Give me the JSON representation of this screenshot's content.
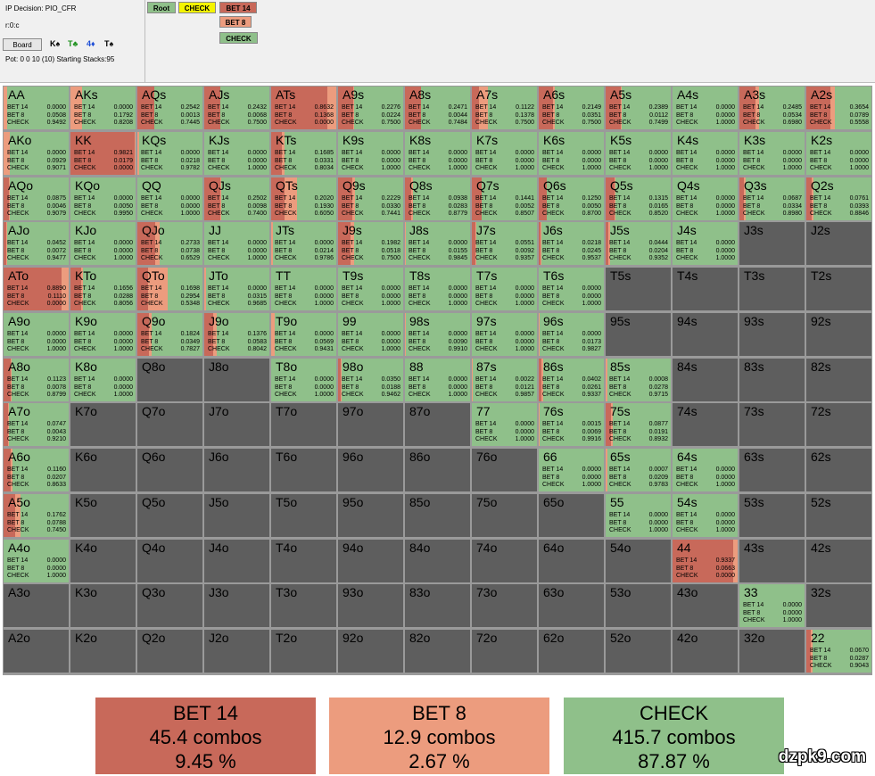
{
  "info": {
    "decision": "IP Decision:  PIO_CFR",
    "node": "r:0:c",
    "board_button": "Board",
    "pot": "Pot: 0 0 10 (10) Starting Stacks:95"
  },
  "board_cards": [
    {
      "text": "K♠",
      "color": "#000000"
    },
    {
      "text": "T♣",
      "color": "#1a8f1a"
    },
    {
      "text": "4♦",
      "color": "#1f4fd6"
    },
    {
      "text": "T♠",
      "color": "#000000"
    }
  ],
  "tree": {
    "root": "Root",
    "check": "CHECK",
    "bet14": "BET 14",
    "bet8": "BET 8",
    "check2": "CHECK"
  },
  "colors": {
    "bet14": "#c8695a",
    "bet8": "#ec9c7e",
    "check": "#8fc08a",
    "empty": "#5e5e5e",
    "check_node": "#f4f400"
  },
  "labels": {
    "bet14": "BET 14",
    "bet8": "BET 8",
    "check": "CHECK"
  },
  "rows": [
    [
      "AA|0.0000|0.0508|0.9492",
      "AKs|0.0000|0.1792|0.8208",
      "AQs|0.2542|0.0013|0.7445",
      "AJs|0.2432|0.0068|0.7500",
      "ATs|0.8632|0.1368|0.0000",
      "A9s|0.2276|0.0224|0.7500",
      "A8s|0.2471|0.0044|0.7484",
      "A7s|0.1122|0.1378|0.7500",
      "A6s|0.2149|0.0351|0.7500",
      "A5s|0.2389|0.0112|0.7499",
      "A4s|0.0000|0.0000|1.0000",
      "A3s|0.2485|0.0534|0.6980",
      "A2s|0.3654|0.0789|0.5558"
    ],
    [
      "AKo|0.0000|0.0929|0.9071",
      "KK|0.9821|0.0179|0.0000",
      "KQs|0.0000|0.0218|0.9782",
      "KJs|0.0000|0.0000|1.0000",
      "KTs|0.1685|0.0331|0.8034",
      "K9s|0.0000|0.0000|1.0000",
      "K8s|0.0000|0.0000|1.0000",
      "K7s|0.0000|0.0000|1.0000",
      "K6s|0.0000|0.0000|1.0000",
      "K5s|0.0000|0.0000|1.0000",
      "K4s|0.0000|0.0000|1.0000",
      "K3s|0.0000|0.0000|1.0000",
      "K2s|0.0000|0.0000|1.0000"
    ],
    [
      "AQo|0.0875|0.0046|0.9079",
      "KQo|0.0000|0.0050|0.9950",
      "QQ|0.0000|0.0000|1.0000",
      "QJs|0.2502|0.0098|0.7400",
      "QTs|0.2020|0.1930|0.6050",
      "Q9s|0.2229|0.0330|0.7441",
      "Q8s|0.0938|0.0283|0.8779",
      "Q7s|0.1441|0.0052|0.8507",
      "Q6s|0.1250|0.0050|0.8700",
      "Q5s|0.1315|0.0165|0.8520",
      "Q4s|0.0000|0.0000|1.0000",
      "Q3s|0.0687|0.0334|0.8980",
      "Q2s|0.0761|0.0393|0.8846"
    ],
    [
      "AJo|0.0452|0.0072|0.9477",
      "KJo|0.0000|0.0000|1.0000",
      "QJo|0.2733|0.0738|0.6529",
      "JJ|0.0000|0.0000|1.0000",
      "JTs|0.0000|0.0214|0.9786",
      "J9s|0.1982|0.0518|0.7500",
      "J8s|0.0000|0.0155|0.9845",
      "J7s|0.0551|0.0092|0.9357",
      "J6s|0.0218|0.0245|0.9537",
      "J5s|0.0444|0.0204|0.9352",
      "J4s|0.0000|0.0000|1.0000",
      "J3s",
      "J2s"
    ],
    [
      "ATo|0.8890|0.1110|0.0000",
      "KTo|0.1656|0.0288|0.8056",
      "QTo|0.1698|0.2954|0.5348",
      "JTo|0.0000|0.0315|0.9685",
      "TT|0.0000|0.0000|1.0000",
      "T9s|0.0000|0.0000|1.0000",
      "T8s|0.0000|0.0000|1.0000",
      "T7s|0.0000|0.0000|1.0000",
      "T6s|0.0000|0.0000|1.0000",
      "T5s",
      "T4s",
      "T3s",
      "T2s"
    ],
    [
      "A9o|0.0000|0.0000|1.0000",
      "K9o|0.0000|0.0000|1.0000",
      "Q9o|0.1824|0.0349|0.7827",
      "J9o|0.1376|0.0583|0.8042",
      "T9o|0.0000|0.0569|0.9431",
      "99|0.0000|0.0000|1.0000",
      "98s|0.0000|0.0090|0.9910",
      "97s|0.0000|0.0000|1.0000",
      "96s|0.0000|0.0173|0.9827",
      "95s",
      "94s",
      "93s",
      "92s"
    ],
    [
      "A8o|0.1123|0.0078|0.8799",
      "K8o|0.0000|0.0000|1.0000",
      "Q8o",
      "J8o",
      "T8o|0.0000|0.0000|1.0000",
      "98o|0.0350|0.0188|0.9462",
      "88|0.0000|0.0000|1.0000",
      "87s|0.0022|0.0121|0.9857",
      "86s|0.0402|0.0261|0.9337",
      "85s|0.0008|0.0278|0.9715",
      "84s",
      "83s",
      "82s"
    ],
    [
      "A7o|0.0747|0.0043|0.9210",
      "K7o",
      "Q7o",
      "J7o",
      "T7o",
      "97o",
      "87o",
      "77|0.0000|0.0000|1.0000",
      "76s|0.0015|0.0069|0.9916",
      "75s|0.0877|0.0191|0.8932",
      "74s",
      "73s",
      "72s"
    ],
    [
      "A6o|0.1160|0.0207|0.8633",
      "K6o",
      "Q6o",
      "J6o",
      "T6o",
      "96o",
      "86o",
      "76o",
      "66|0.0000|0.0000|1.0000",
      "65s|0.0007|0.0209|0.9783",
      "64s|0.0000|0.0000|1.0000",
      "63s",
      "62s"
    ],
    [
      "A5o|0.1762|0.0788|0.7450",
      "K5o",
      "Q5o",
      "J5o",
      "T5o",
      "95o",
      "85o",
      "75o",
      "65o",
      "55|0.0000|0.0000|1.0000",
      "54s|0.0000|0.0000|1.0000",
      "53s",
      "52s"
    ],
    [
      "A4o|0.0000|0.0000|1.0000",
      "K4o",
      "Q4o",
      "J4o",
      "T4o",
      "94o",
      "84o",
      "74o",
      "64o",
      "54o",
      "44|0.9337|0.0663|0.0000",
      "43s",
      "42s"
    ],
    [
      "A3o",
      "K3o",
      "Q3o",
      "J3o",
      "T3o",
      "93o",
      "83o",
      "73o",
      "63o",
      "53o",
      "43o",
      "33|0.0000|0.0000|1.0000",
      "32s"
    ],
    [
      "A2o",
      "K2o",
      "Q2o",
      "J2o",
      "T2o",
      "92o",
      "82o",
      "72o",
      "62o",
      "52o",
      "42o",
      "32o",
      "22|0.0670|0.0287|0.9043"
    ]
  ],
  "summary": [
    {
      "label": "BET 14",
      "combos": "45.4 combos",
      "pct": "9.45 %",
      "share": 0.0945,
      "color": "#c8695a"
    },
    {
      "label": "BET 8",
      "combos": "12.9 combos",
      "pct": "2.67 %",
      "share": 0.0267,
      "color": "#ec9c7e"
    },
    {
      "label": "CHECK",
      "combos": "415.7 combos",
      "pct": "87.87 %",
      "share": 0.8787,
      "color": "#8fc08a"
    }
  ],
  "watermark": "dzpk9.com"
}
